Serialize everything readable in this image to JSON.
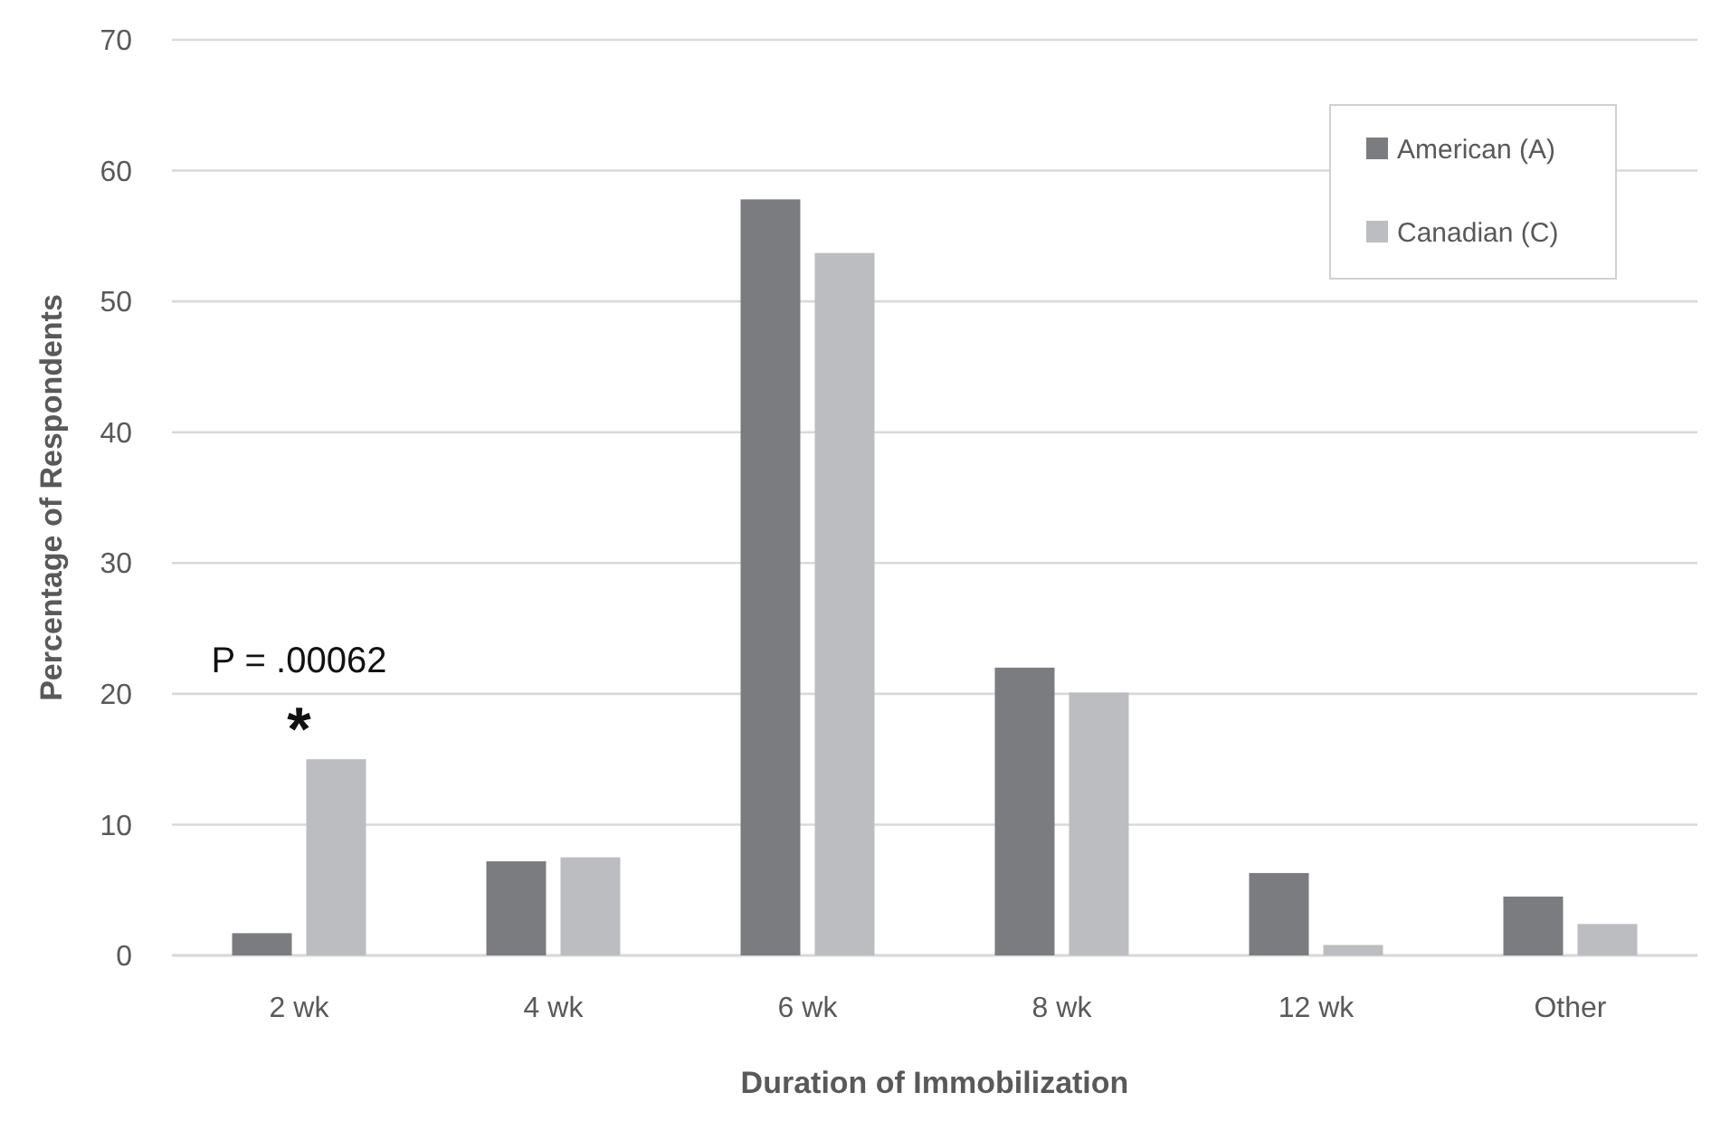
{
  "chart_data": {
    "type": "bar",
    "xlabel": "Duration of Immobilization",
    "ylabel": "Percentage of Respondents",
    "categories": [
      "2 wk",
      "4 wk",
      "6 wk",
      "8 wk",
      "12 wk",
      "Other"
    ],
    "series": [
      {
        "name": "American (A)",
        "color": "#7b7c80",
        "values": [
          1.7,
          7.2,
          57.8,
          22.0,
          6.3,
          4.5
        ]
      },
      {
        "name": "Canadian (C)",
        "color": "#bcbdc1",
        "values": [
          15.0,
          7.5,
          53.7,
          20.1,
          0.8,
          2.4
        ]
      }
    ],
    "ylim": [
      0,
      70
    ],
    "yticks": [
      0,
      10,
      20,
      30,
      40,
      50,
      60,
      70
    ],
    "grid": "y",
    "legend": "top right",
    "annotations": [
      {
        "text": "P = .00062",
        "x": "2 wk",
        "y": 15.0
      },
      {
        "text": "*",
        "x": "2 wk",
        "y": 15.0
      }
    ]
  }
}
